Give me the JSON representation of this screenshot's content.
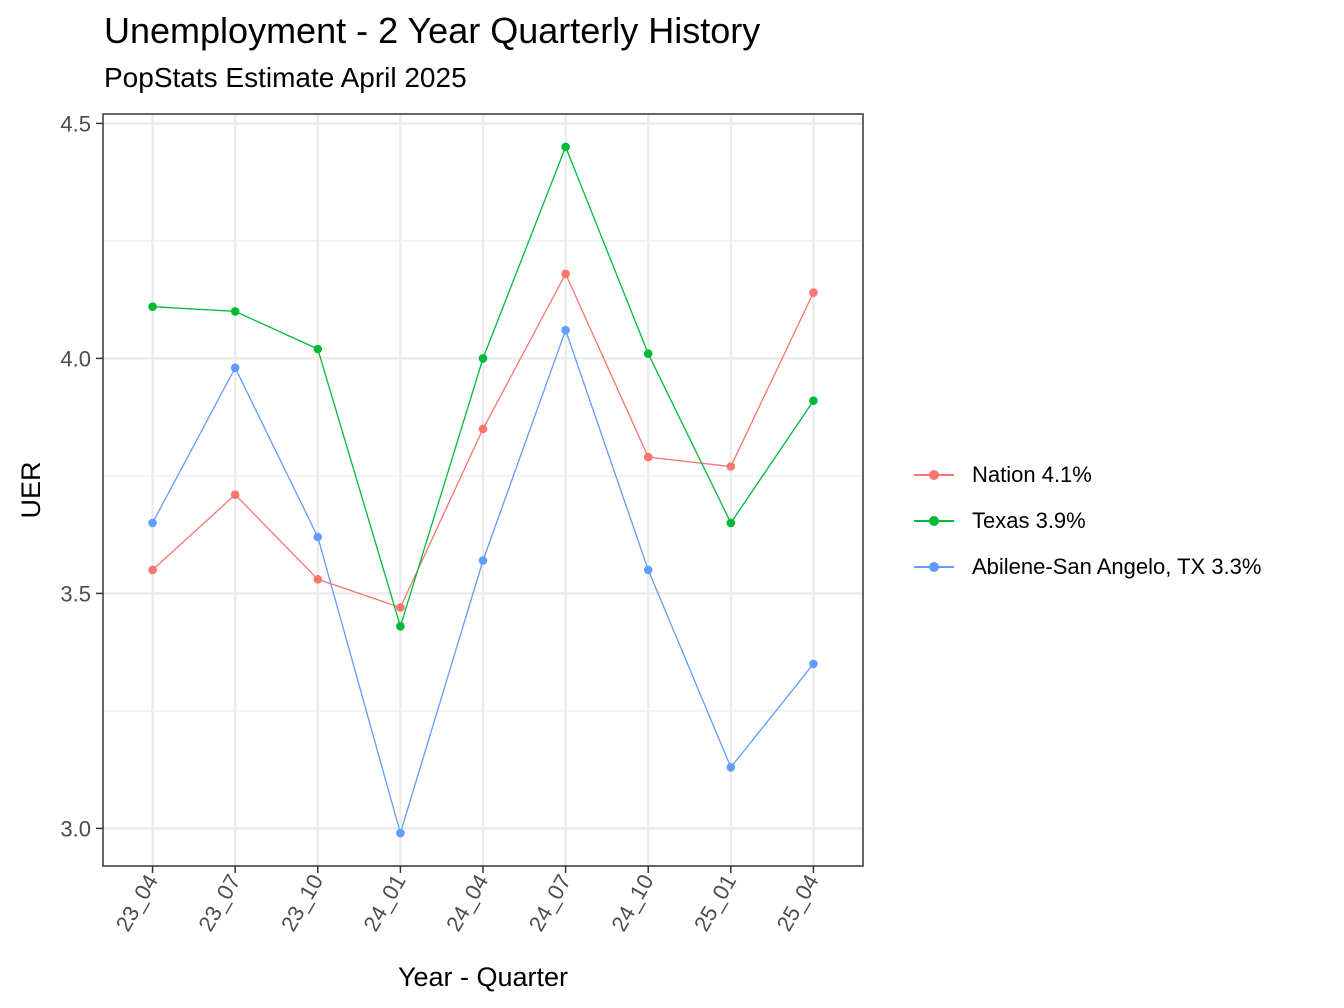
{
  "chart_data": {
    "type": "line",
    "title": "Unemployment - 2 Year Quarterly History",
    "subtitle": "PopStats Estimate April 2025",
    "xlabel": "Year - Quarter",
    "ylabel": "UER",
    "categories": [
      "23_04",
      "23_07",
      "23_10",
      "24_01",
      "24_04",
      "24_07",
      "24_10",
      "25_01",
      "25_04"
    ],
    "ylim": [
      2.92,
      4.52
    ],
    "yticks": [
      3.0,
      3.5,
      4.0,
      4.5
    ],
    "ytick_labels": [
      "3.0",
      "3.5",
      "4.0",
      "4.5"
    ],
    "grid": true,
    "legend_position": "right",
    "series": [
      {
        "name": "Nation 4.1%",
        "color": "#F8766D",
        "values": [
          3.55,
          3.71,
          3.53,
          3.47,
          3.85,
          4.18,
          3.79,
          3.77,
          4.14
        ]
      },
      {
        "name": "Texas 3.9%",
        "color": "#00BA38",
        "values": [
          4.11,
          4.1,
          4.02,
          3.43,
          4.0,
          4.45,
          4.01,
          3.65,
          3.91
        ]
      },
      {
        "name": "Abilene-San Angelo, TX 3.3%",
        "color": "#619CFF",
        "values": [
          3.65,
          3.98,
          3.62,
          2.99,
          3.57,
          4.06,
          3.55,
          3.13,
          3.35
        ]
      }
    ]
  }
}
